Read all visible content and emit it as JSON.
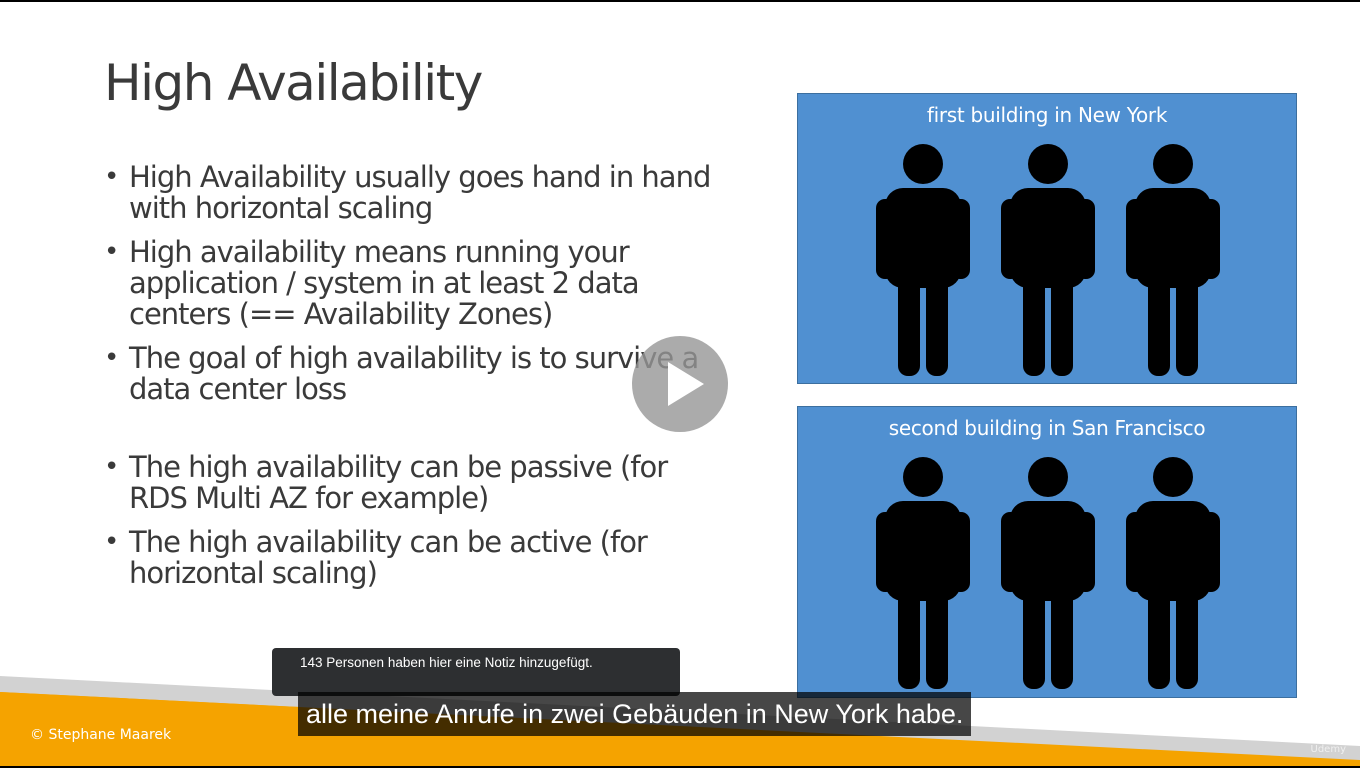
{
  "slide": {
    "title": "High Availability",
    "bullets": [
      "High Availability usually goes hand in hand with horizontal scaling",
      "High availability means running your application / system in at least 2 data centers (== Availability Zones)",
      "The goal of high availability is to survive a data center loss",
      "The high availability can be passive (for RDS Multi AZ for example)",
      "The high availability can be active (for horizontal scaling)"
    ],
    "buildings": [
      {
        "label": "first building in New York"
      },
      {
        "label": "second building in San Francisco"
      }
    ],
    "copyright": "© Stephane Maarek"
  },
  "player": {
    "play_icon": "play-icon",
    "note_tooltip": "143 Personen haben hier eine Notiz hinzugefügt.",
    "subtitle": "alle meine Anrufe in zwei Gebäuden in New York habe.",
    "watermark": "Udemy"
  },
  "colors": {
    "building_fill": "#5090d1",
    "footer_orange": "#f5a300",
    "footer_gray": "#d2d2d2",
    "title_text": "#3a3a3a"
  }
}
